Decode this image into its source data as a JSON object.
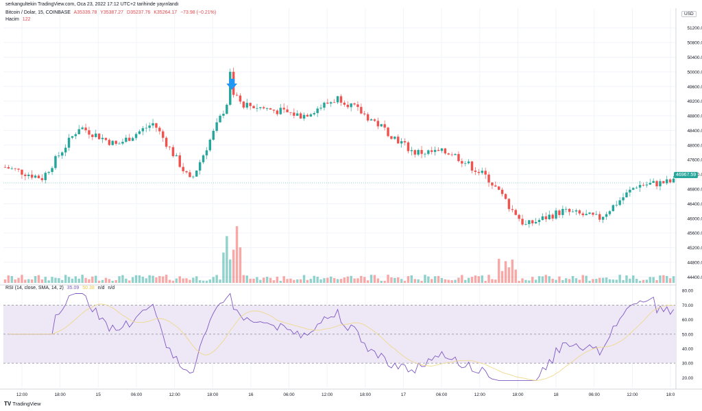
{
  "header": {
    "published_line": "serkangultekin TradingView.com, Oca 23, 2022 17:12 UTC+2 tarihinde yayınlandı",
    "symbol": "Bitcoin / Dolar, 15, COINBASE",
    "open": "A35339.78",
    "high": "Y35387.27",
    "low": "D35237.76",
    "close": "K35264.17",
    "change": "−73.98 (−0.21%)",
    "volume_label": "Hacim",
    "volume_value": "122",
    "rsi_label": "RSI (14, close, SMA, 14, 2)",
    "rsi_value": "35.09",
    "rsi_sma_value": "50.38",
    "rsi_na_1": "n/d",
    "rsi_na_2": "n/d"
  },
  "currency": "USD",
  "last_price_label": "46967.59",
  "logo_text": "TradingView",
  "colors": {
    "up": "#26a69a",
    "down": "#ef5350",
    "rsi_line": "#7e57c2",
    "rsi_sma": "#f0d98c",
    "rsi_band": "#ede7f6",
    "marker": "#2196f3"
  },
  "price_axis_labels": [
    "51200.00",
    "50800.00",
    "50400.00",
    "50000.00",
    "49600.00",
    "49200.00",
    "48800.00",
    "48400.00",
    "48000.00",
    "47600.00",
    "47200.00",
    "46800.00",
    "46400.00",
    "46000.00",
    "45600.00",
    "45200.00",
    "44800.00",
    "44400.00"
  ],
  "rsi_axis_labels": [
    "80.00",
    "70.00",
    "60.00",
    "50.00",
    "40.00",
    "30.00",
    "20.00"
  ],
  "time_labels": [
    "12:00",
    "18:00",
    "15",
    "06:00",
    "12:00",
    "18:00",
    "16",
    "06:00",
    "12:00",
    "18:00",
    "17",
    "06:00",
    "12:00",
    "18:00",
    "18",
    "06:00",
    "12:00",
    "18:0"
  ],
  "chart_data": {
    "type": "line",
    "title": "Bitcoin / Dolar, 15, COINBASE",
    "description_series": "approximate closing prices (USD) along the x timeline",
    "x": [
      "14 12:00",
      "14 18:00",
      "15 00:00",
      "15 06:00",
      "15 12:00",
      "15 18:00",
      "15 21:00",
      "16 00:00",
      "16 06:00",
      "16 12:00",
      "16 18:00",
      "17 00:00",
      "17 06:00",
      "17 12:00",
      "17 17:00",
      "18 00:00",
      "18 06:00",
      "18 12:00",
      "18 18:00"
    ],
    "series": [
      {
        "values": [
          47400,
          47100,
          48500,
          48000,
          48600,
          47000,
          49200,
          49000,
          48800,
          49300,
          48600,
          47800,
          47800,
          47100,
          45800,
          46200,
          46000,
          46900,
          47000
        ]
      }
    ],
    "ylim": [
      44200,
      51400
    ],
    "rsi": {
      "ylim": [
        15,
        82
      ],
      "overbought": 70,
      "oversold": 30,
      "mid": 50
    },
    "grid": true
  }
}
